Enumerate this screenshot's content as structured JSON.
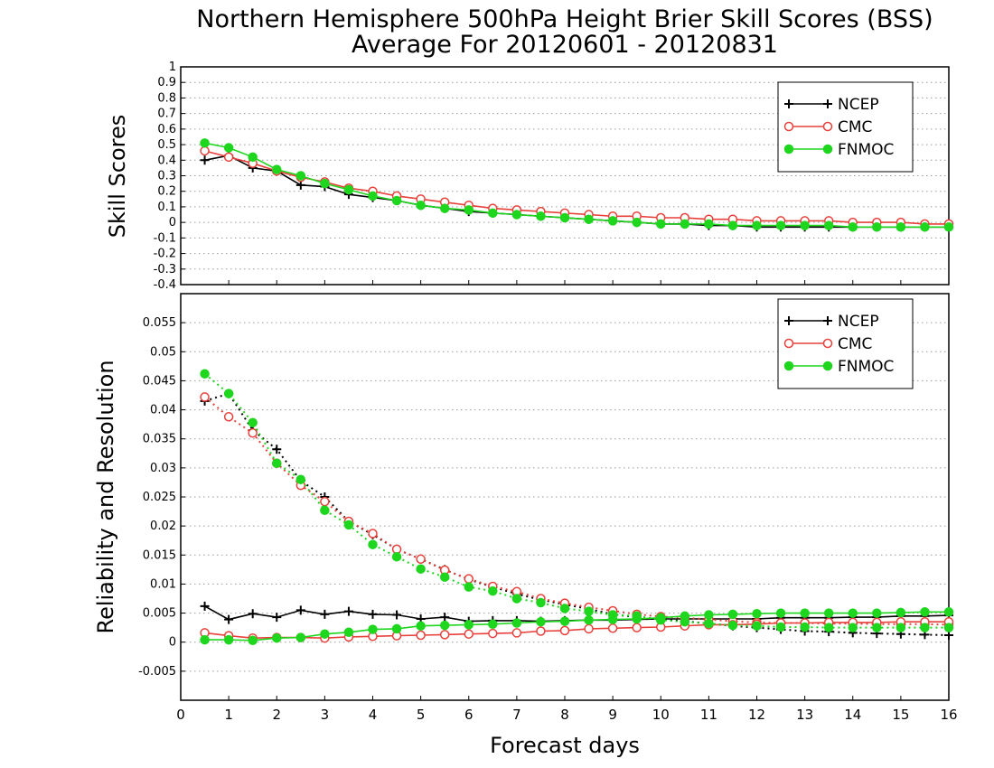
{
  "title_line1": "Northern Hemisphere 500hPa Height Brier Skill Scores (BSS)",
  "title_line2": "Average For 20120601 - 20120831",
  "xlabel": "Forecast days",
  "colors": {
    "NCEP": "#000000",
    "CMC": "#e8413c",
    "FNMOC": "#1fd61f"
  },
  "chart_data": [
    {
      "type": "line",
      "ylabel": "Skill Scores",
      "xlim": [
        0,
        16
      ],
      "ylim": [
        -0.4,
        1
      ],
      "x_ticks": [
        0,
        1,
        2,
        3,
        4,
        5,
        6,
        7,
        8,
        9,
        10,
        11,
        12,
        13,
        14,
        15,
        16
      ],
      "y_ticks": [
        -0.4,
        -0.3,
        -0.2,
        -0.1,
        0,
        0.1,
        0.2,
        0.3,
        0.4,
        0.5,
        0.6,
        0.7,
        0.8,
        0.9,
        1
      ],
      "grid": true,
      "legend_position": "top-right",
      "x": [
        0.5,
        1,
        1.5,
        2,
        2.5,
        3,
        3.5,
        4,
        4.5,
        5,
        5.5,
        6,
        6.5,
        7,
        7.5,
        8,
        8.5,
        9,
        9.5,
        10,
        10.5,
        11,
        11.5,
        12,
        12.5,
        13,
        13.5,
        14,
        14.5,
        15,
        15.5,
        16
      ],
      "series": [
        {
          "name": "NCEP",
          "marker": "plus",
          "style": "solid",
          "values": [
            0.4,
            0.43,
            0.35,
            0.33,
            0.24,
            0.23,
            0.18,
            0.16,
            0.14,
            0.11,
            0.09,
            0.07,
            0.06,
            0.05,
            0.04,
            0.03,
            0.02,
            0.01,
            0.0,
            -0.01,
            -0.01,
            -0.02,
            -0.02,
            -0.03,
            -0.03,
            -0.03,
            -0.03,
            -0.03,
            -0.03,
            -0.03,
            -0.03,
            -0.03
          ]
        },
        {
          "name": "CMC",
          "marker": "open-circle",
          "style": "solid",
          "values": [
            0.46,
            0.42,
            0.38,
            0.33,
            0.29,
            0.26,
            0.22,
            0.2,
            0.17,
            0.15,
            0.13,
            0.11,
            0.09,
            0.08,
            0.07,
            0.06,
            0.05,
            0.04,
            0.04,
            0.03,
            0.03,
            0.02,
            0.02,
            0.01,
            0.01,
            0.01,
            0.01,
            0.0,
            0.0,
            0.0,
            -0.01,
            -0.01
          ]
        },
        {
          "name": "FNMOC",
          "marker": "filled-circle",
          "style": "solid",
          "values": [
            0.51,
            0.48,
            0.42,
            0.34,
            0.3,
            0.25,
            0.21,
            0.17,
            0.14,
            0.11,
            0.09,
            0.08,
            0.06,
            0.05,
            0.04,
            0.03,
            0.02,
            0.01,
            0.0,
            -0.01,
            -0.01,
            -0.01,
            -0.02,
            -0.02,
            -0.02,
            -0.02,
            -0.02,
            -0.03,
            -0.03,
            -0.03,
            -0.03,
            -0.03
          ]
        }
      ]
    },
    {
      "type": "line",
      "ylabel": "Reliability and Resolution",
      "xlim": [
        0,
        16
      ],
      "ylim": [
        -0.01,
        0.06
      ],
      "x_ticks": [
        0,
        1,
        2,
        3,
        4,
        5,
        6,
        7,
        8,
        9,
        10,
        11,
        12,
        13,
        14,
        15,
        16
      ],
      "y_ticks": [
        -0.005,
        0,
        0.005,
        0.01,
        0.015,
        0.02,
        0.025,
        0.03,
        0.035,
        0.04,
        0.045,
        0.05,
        0.055
      ],
      "grid": true,
      "legend_position": "top-right",
      "x": [
        0.5,
        1,
        1.5,
        2,
        2.5,
        3,
        3.5,
        4,
        4.5,
        5,
        5.5,
        6,
        6.5,
        7,
        7.5,
        8,
        8.5,
        9,
        9.5,
        10,
        10.5,
        11,
        11.5,
        12,
        12.5,
        13,
        13.5,
        14,
        14.5,
        15,
        15.5,
        16
      ],
      "series": [
        {
          "name": "NCEP",
          "marker": "plus",
          "style": "dotted",
          "values": [
            0.0415,
            0.0428,
            0.0365,
            0.0332,
            0.0278,
            0.025,
            0.0208,
            0.0185,
            0.016,
            0.0143,
            0.0125,
            0.0108,
            0.0095,
            0.0083,
            0.0073,
            0.0065,
            0.0057,
            0.0048,
            0.0043,
            0.004,
            0.0036,
            0.0032,
            0.0028,
            0.0025,
            0.0022,
            0.0019,
            0.0018,
            0.0016,
            0.0015,
            0.0014,
            0.0013,
            0.0012
          ]
        },
        {
          "name": "NCEP",
          "marker": "plus",
          "style": "solid",
          "values": [
            0.0062,
            0.0039,
            0.0049,
            0.0043,
            0.0055,
            0.0048,
            0.0053,
            0.0048,
            0.0047,
            0.004,
            0.0043,
            0.0036,
            0.0037,
            0.0037,
            0.0036,
            0.0037,
            0.0038,
            0.0038,
            0.0039,
            0.004,
            0.004,
            0.004,
            0.004,
            0.004,
            0.0042,
            0.0042,
            0.0042,
            0.0043,
            0.0043,
            0.0045,
            0.0045,
            0.0046
          ]
        },
        {
          "name": "CMC",
          "marker": "open-circle",
          "style": "dotted",
          "values": [
            0.0422,
            0.0388,
            0.036,
            0.0308,
            0.027,
            0.0242,
            0.0208,
            0.0187,
            0.016,
            0.0143,
            0.0124,
            0.0109,
            0.0096,
            0.0087,
            0.0075,
            0.0067,
            0.006,
            0.0054,
            0.0048,
            0.0044,
            0.0042,
            0.0039,
            0.0036,
            0.0034,
            0.0033,
            0.0033,
            0.0032,
            0.0032,
            0.0031,
            0.0031,
            0.0031,
            0.003
          ]
        },
        {
          "name": "CMC",
          "marker": "open-circle",
          "style": "solid",
          "values": [
            0.0016,
            0.0011,
            0.0007,
            0.0008,
            0.0008,
            0.0007,
            0.0009,
            0.001,
            0.0011,
            0.0012,
            0.0013,
            0.0014,
            0.0015,
            0.0016,
            0.0019,
            0.002,
            0.0023,
            0.0024,
            0.0025,
            0.0026,
            0.0028,
            0.003,
            0.003,
            0.0031,
            0.0033,
            0.0033,
            0.0034,
            0.0034,
            0.0034,
            0.0035,
            0.0035,
            0.0035
          ]
        },
        {
          "name": "FNMOC",
          "marker": "filled-circle",
          "style": "dotted",
          "values": [
            0.0462,
            0.0428,
            0.0378,
            0.0308,
            0.028,
            0.0227,
            0.0202,
            0.0168,
            0.0147,
            0.0126,
            0.0112,
            0.0095,
            0.0088,
            0.0075,
            0.0068,
            0.0058,
            0.0053,
            0.0047,
            0.0045,
            0.0038,
            0.0035,
            0.0032,
            0.0029,
            0.0028,
            0.0026,
            0.0026,
            0.0025,
            0.0025,
            0.0025,
            0.0025,
            0.0025,
            0.0025
          ]
        },
        {
          "name": "FNMOC",
          "marker": "filled-circle",
          "style": "solid",
          "values": [
            0.0004,
            0.0004,
            0.0003,
            0.0007,
            0.0008,
            0.0014,
            0.0017,
            0.0022,
            0.0023,
            0.0028,
            0.0029,
            0.003,
            0.0031,
            0.0033,
            0.0035,
            0.0036,
            0.0038,
            0.0039,
            0.004,
            0.0042,
            0.0045,
            0.0047,
            0.0048,
            0.0049,
            0.005,
            0.005,
            0.005,
            0.005,
            0.005,
            0.0051,
            0.0052,
            0.0052
          ]
        }
      ]
    }
  ]
}
